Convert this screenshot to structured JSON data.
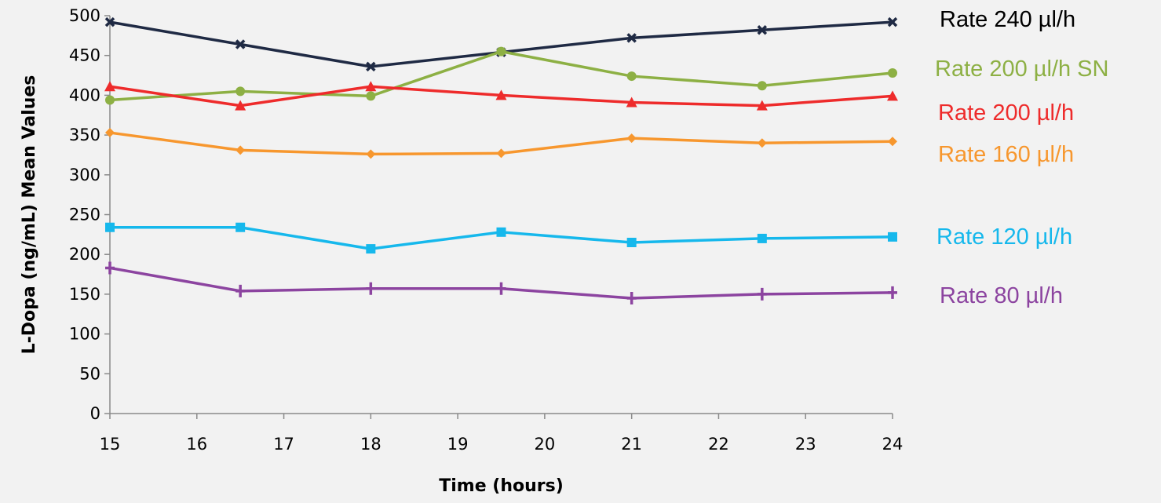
{
  "chart_data": {
    "type": "line",
    "title": "",
    "xlabel": "Time (hours)",
    "ylabel": "L-Dopa (ng/mL) Mean Values",
    "xlim": [
      15,
      24
    ],
    "ylim": [
      0,
      500
    ],
    "x_ticks": [
      15,
      16,
      17,
      18,
      19,
      20,
      21,
      22,
      23,
      24
    ],
    "y_ticks": [
      0,
      50,
      100,
      150,
      200,
      250,
      300,
      350,
      400,
      450,
      500
    ],
    "grid": false,
    "legend_placement": "right",
    "x": [
      15,
      16.5,
      18,
      19.5,
      21,
      22.5,
      24
    ],
    "series": [
      {
        "name": "Rate 240 µl/h",
        "color": "#1f2a44",
        "marker": "x-marker",
        "label_color": "#000000",
        "values": [
          492,
          464,
          436,
          454,
          472,
          482,
          492
        ]
      },
      {
        "name": "Rate 200 µl/h SN",
        "color": "#8db044",
        "marker": "circle-marker",
        "label_color": "#8db044",
        "values": [
          394,
          405,
          399,
          455,
          424,
          412,
          428
        ]
      },
      {
        "name": "Rate 200 µl/h",
        "color": "#ee2b2b",
        "marker": "triangle-marker",
        "label_color": "#ee2b2b",
        "values": [
          411,
          387,
          411,
          400,
          391,
          387,
          399
        ]
      },
      {
        "name": "Rate 160 µl/h",
        "color": "#f7972e",
        "marker": "diamond-marker",
        "label_color": "#f7972e",
        "values": [
          353,
          331,
          326,
          327,
          346,
          340,
          342
        ]
      },
      {
        "name": "Rate 120 µl/h",
        "color": "#16b8ec",
        "marker": "square-marker",
        "label_color": "#16b8ec",
        "values": [
          234,
          234,
          207,
          228,
          215,
          220,
          222
        ]
      },
      {
        "name": "Rate 80 µl/h",
        "color": "#8c44a0",
        "marker": "plus-marker",
        "label_color": "#8c44a0",
        "values": [
          183,
          154,
          157,
          157,
          145,
          150,
          152
        ]
      }
    ]
  }
}
